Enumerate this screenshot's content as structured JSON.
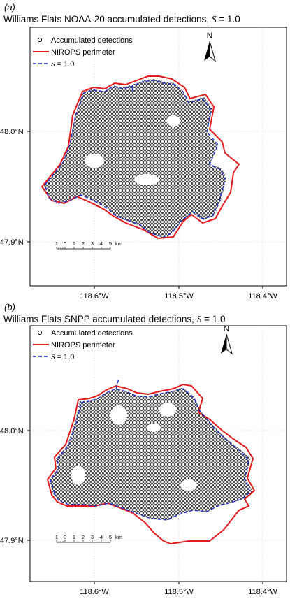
{
  "panels": [
    {
      "letter": "(a)",
      "title_prefix": "Williams Flats NOAA-20 accumulated detections, ",
      "title_var": "S",
      "title_suffix": " = 1.0",
      "legend": {
        "detections": "Accumulated detections",
        "perimeter": "NIROPS perimeter",
        "s_var": "S",
        "s_suffix": " = 1.0"
      },
      "north_label": "N",
      "lat_ticks": [
        "48.0°N",
        "47.9°N"
      ],
      "lon_ticks": [
        "118.6°W",
        "118.5°W",
        "118.4°W"
      ],
      "scale_bar": {
        "ticks": [
          "1",
          "0",
          "1",
          "2",
          "3",
          "4",
          "5"
        ],
        "unit": "km"
      }
    },
    {
      "letter": "(b)",
      "title_prefix": "Williams Flats SNPP accumulated detections, ",
      "title_var": "S",
      "title_suffix": " = 1.0",
      "legend": {
        "detections": "Accumulated detections",
        "perimeter": "NIROPS perimeter",
        "s_var": "S",
        "s_suffix": " = 1.0"
      },
      "north_label": "N",
      "lat_ticks": [
        "48.0°N",
        "47.9°N"
      ],
      "lon_ticks": [
        "118.6°W",
        "118.5°W",
        "118.4°W"
      ],
      "scale_bar": {
        "ticks": [
          "1",
          "0",
          "1",
          "2",
          "3",
          "4",
          "5"
        ],
        "unit": "km"
      }
    }
  ],
  "colors": {
    "perimeter": "#e41a1c",
    "s_line": "#1f2fd0",
    "detection": "#000000",
    "grid": "#cccccc"
  }
}
